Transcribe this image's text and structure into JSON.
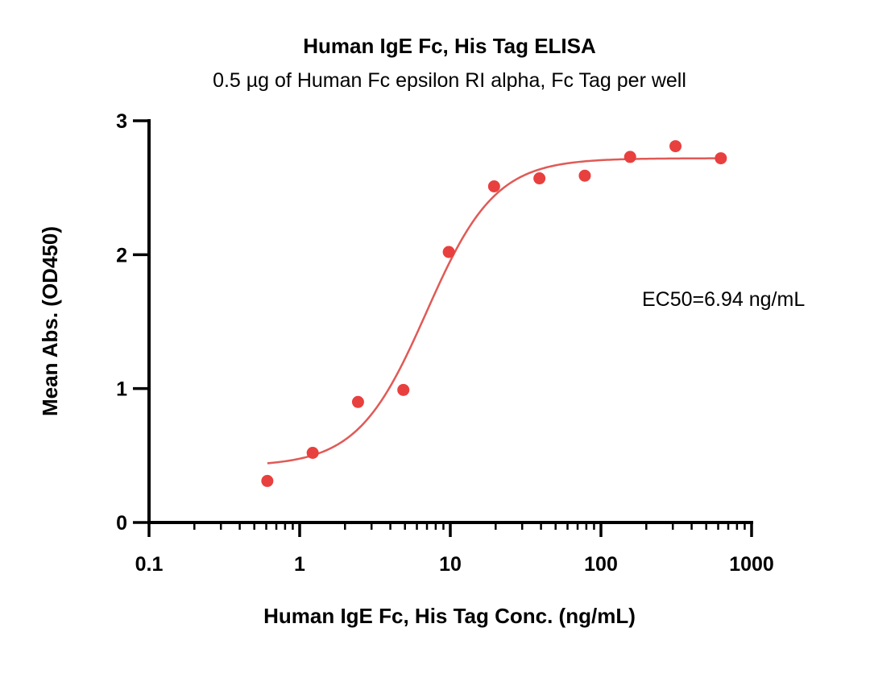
{
  "chart_data": {
    "type": "scatter",
    "title": "Human IgE Fc, His Tag ELISA",
    "subtitle": "0.5 µg of Human Fc epsilon RI alpha, Fc Tag per well",
    "xlabel": "Human IgE Fc, His Tag Conc. (ng/mL)",
    "ylabel": "Mean Abs. (OD450)",
    "x_scale": "log",
    "xlim": [
      0.1,
      1000
    ],
    "ylim": [
      0,
      3
    ],
    "x_ticks": [
      0.1,
      1,
      10,
      100,
      1000
    ],
    "x_tick_labels": [
      "0.1",
      "1",
      "10",
      "100",
      "1000"
    ],
    "y_ticks": [
      0,
      1,
      2,
      3
    ],
    "y_tick_labels": [
      "0",
      "1",
      "2",
      "3"
    ],
    "grid": false,
    "annotation": "EC50=6.94 ng/mL",
    "colors": {
      "points": "#E8403E",
      "curve": "#E05A56",
      "axes": "#000000"
    },
    "series": [
      {
        "x": [
          0.61,
          1.22,
          2.44,
          4.88,
          9.77,
          19.53,
          39.06,
          78.13,
          156.25,
          312.5,
          625
        ],
        "y": [
          0.31,
          0.52,
          0.9,
          0.99,
          2.02,
          2.51,
          2.57,
          2.59,
          2.73,
          2.81,
          2.72
        ]
      }
    ],
    "fit_curve": {
      "model": "4PL",
      "bottom": 0.42,
      "top": 2.72,
      "ec50": 6.94,
      "hill": 1.9,
      "x_range": [
        0.61,
        625
      ]
    }
  }
}
